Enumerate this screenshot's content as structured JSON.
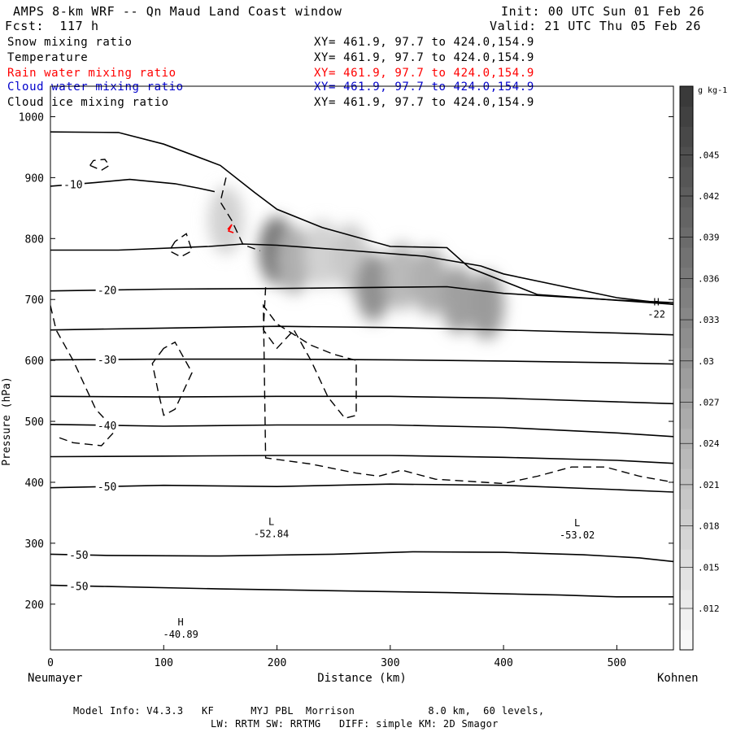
{
  "header": {
    "title": "AMPS 8-km WRF -- Qn Maud Land Coast window",
    "init": "Init: 00 UTC Sun 01 Feb 26",
    "fcst": "Fcst:  117 h",
    "valid": "Valid: 21 UTC Thu 05 Feb 26",
    "fields": [
      {
        "name": "Snow mixing ratio",
        "color": "#000000"
      },
      {
        "name": "Temperature",
        "color": "#000000"
      },
      {
        "name": "Rain water mixing ratio",
        "color": "#ff0000"
      },
      {
        "name": "Cloud water mixing ratio",
        "color": "#0000cc"
      },
      {
        "name": "Cloud ice mixing ratio",
        "color": "#000000"
      }
    ],
    "xy": "XY= 461.9, 97.7 to 424.0,154.9"
  },
  "chart_data": {
    "type": "cross-section",
    "xlabel": "Distance (km)",
    "ylabel": "Pressure (hPa)",
    "xlim": [
      0,
      550
    ],
    "ylim": [
      1050,
      125
    ],
    "x_ticks": [
      0,
      100,
      200,
      300,
      400,
      500
    ],
    "x_tick_labels": [
      "0",
      "100",
      "200",
      "300",
      "400",
      "500"
    ],
    "y_ticks": [
      200,
      300,
      400,
      500,
      600,
      700,
      800,
      900,
      1000
    ],
    "y_tick_labels": [
      "200",
      "300",
      "400",
      "500",
      "600",
      "700",
      "800",
      "900",
      "1000"
    ],
    "left_endpoint": "Neumayer",
    "right_endpoint": "Kohnen",
    "temperature_contours": [
      {
        "label": "-50",
        "points": [
          [
            0,
            231
          ],
          [
            50,
            229
          ],
          [
            150,
            225
          ],
          [
            250,
            222
          ],
          [
            350,
            219
          ],
          [
            450,
            215
          ],
          [
            500,
            212
          ],
          [
            550,
            212
          ]
        ]
      },
      {
        "label": "-50",
        "points": [
          [
            0,
            282
          ],
          [
            50,
            280
          ],
          [
            150,
            279
          ],
          [
            250,
            282
          ],
          [
            320,
            286
          ],
          [
            400,
            285
          ],
          [
            470,
            281
          ],
          [
            520,
            276
          ],
          [
            550,
            270
          ]
        ]
      },
      {
        "label": "-50",
        "points": [
          [
            0,
            391
          ],
          [
            100,
            395
          ],
          [
            200,
            393
          ],
          [
            300,
            397
          ],
          [
            400,
            395
          ],
          [
            500,
            388
          ],
          [
            550,
            384
          ]
        ]
      },
      {
        "label": "",
        "points": [
          [
            0,
            442
          ],
          [
            100,
            443
          ],
          [
            200,
            444
          ],
          [
            300,
            444
          ],
          [
            400,
            441
          ],
          [
            500,
            436
          ],
          [
            550,
            431
          ]
        ]
      },
      {
        "label": "-40",
        "points": [
          [
            0,
            495
          ],
          [
            100,
            492
          ],
          [
            200,
            494
          ],
          [
            300,
            494
          ],
          [
            400,
            490
          ],
          [
            500,
            481
          ],
          [
            550,
            475
          ]
        ]
      },
      {
        "label": "",
        "points": [
          [
            0,
            541
          ],
          [
            100,
            540
          ],
          [
            200,
            541
          ],
          [
            300,
            541
          ],
          [
            400,
            538
          ],
          [
            500,
            532
          ],
          [
            550,
            529
          ]
        ]
      },
      {
        "label": "-30",
        "points": [
          [
            0,
            601
          ],
          [
            100,
            602
          ],
          [
            200,
            602
          ],
          [
            300,
            601
          ],
          [
            400,
            599
          ],
          [
            500,
            596
          ],
          [
            550,
            594
          ]
        ]
      },
      {
        "label": "",
        "points": [
          [
            0,
            650
          ],
          [
            100,
            653
          ],
          [
            200,
            656
          ],
          [
            300,
            654
          ],
          [
            400,
            650
          ],
          [
            500,
            645
          ],
          [
            550,
            642
          ]
        ]
      },
      {
        "label": "-20",
        "points": [
          [
            0,
            714
          ],
          [
            100,
            717
          ],
          [
            200,
            718
          ],
          [
            300,
            720
          ],
          [
            350,
            721
          ],
          [
            400,
            710
          ],
          [
            500,
            699
          ],
          [
            550,
            695
          ]
        ]
      },
      {
        "label": "",
        "points": [
          [
            0,
            781
          ],
          [
            60,
            781
          ],
          [
            140,
            787
          ],
          [
            170,
            791
          ],
          [
            200,
            789
          ],
          [
            260,
            781
          ],
          [
            330,
            771
          ],
          [
            380,
            755
          ],
          [
            400,
            742
          ],
          [
            500,
            703
          ],
          [
            550,
            692
          ]
        ]
      },
      {
        "label": "-10",
        "points": [
          [
            0,
            886
          ],
          [
            40,
            892
          ],
          [
            70,
            897
          ],
          [
            110,
            890
          ],
          [
            130,
            883
          ],
          [
            145,
            877
          ]
        ]
      }
    ],
    "extrema": [
      {
        "type": "H",
        "value": "-40.89",
        "x": 115,
        "p": 165
      },
      {
        "type": "L",
        "value": "-52.84",
        "x": 195,
        "p": 330
      },
      {
        "type": "L",
        "value": "-53.02",
        "x": 465,
        "p": 328
      },
      {
        "type": "H",
        "value": "-22",
        "x": 535,
        "p": 690
      }
    ],
    "terrain": [
      [
        0,
        975
      ],
      [
        60,
        974
      ],
      [
        100,
        955
      ],
      [
        150,
        920
      ],
      [
        180,
        876
      ],
      [
        200,
        848
      ],
      [
        240,
        818
      ],
      [
        300,
        787
      ],
      [
        350,
        785
      ],
      [
        370,
        752
      ],
      [
        400,
        730
      ],
      [
        430,
        708
      ],
      [
        550,
        692
      ]
    ],
    "snow_cells": [
      {
        "x": 200,
        "p": 780,
        "v": 0.034
      },
      {
        "x": 215,
        "p": 765,
        "v": 0.022
      },
      {
        "x": 240,
        "p": 775,
        "v": 0.015
      },
      {
        "x": 265,
        "p": 768,
        "v": 0.017
      },
      {
        "x": 285,
        "p": 720,
        "v": 0.028
      },
      {
        "x": 310,
        "p": 738,
        "v": 0.02
      },
      {
        "x": 335,
        "p": 730,
        "v": 0.022
      },
      {
        "x": 360,
        "p": 700,
        "v": 0.025
      },
      {
        "x": 385,
        "p": 690,
        "v": 0.026
      },
      {
        "x": 155,
        "p": 830,
        "v": 0.015
      }
    ],
    "colorbar": {
      "unit": "g kg-1",
      "ticks": [
        ".012",
        ".015",
        ".018",
        ".021",
        ".024",
        ".027",
        ".03",
        ".033",
        ".036",
        ".039",
        ".042",
        ".045"
      ]
    }
  },
  "footer": {
    "line1": "Model Info: V4.3.3   KF      MYJ PBL  Morrison            8.0 km,  60 levels,",
    "line2": "LW: RRTM SW: RRTMG   DIFF: simple KM: 2D Smagor"
  }
}
